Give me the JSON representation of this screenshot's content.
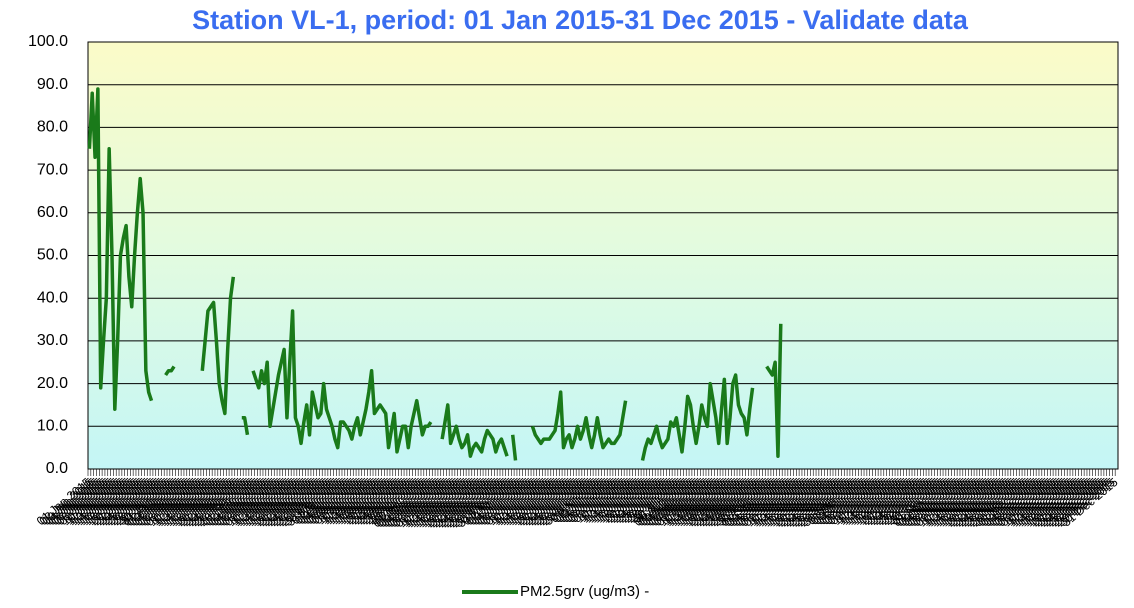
{
  "chart_data": {
    "type": "line",
    "title": "Station VL-1, period: 01 Jan 2015-31 Dec 2015 - Validate data",
    "categories": [
      "01 Jan 2015",
      "02 Jan 2015",
      "03 Jan 2015",
      "04 Jan 2015",
      "05 Jan 2015",
      "06 Jan 2015",
      "07 Jan 2015",
      "08 Jan 2015",
      "09 Jan 2015",
      "10 Jan 2015",
      "11 Jan 2015",
      "12 Jan 2015",
      "13 Jan 2015",
      "14 Jan 2015",
      "15 Jan 2015",
      "16 Jan 2015",
      "17 Jan 2015",
      "18 Jan 2015",
      "19 Jan 2015",
      "20 Jan 2015",
      "21 Jan 2015",
      "22 Jan 2015",
      "23 Jan 2015",
      "24 Jan 2015",
      "25 Jan 2015",
      "26 Jan 2015",
      "27 Jan 2015",
      "28 Jan 2015",
      "29 Jan 2015",
      "30 Jan 2015",
      "31 Jan 2015",
      "01 Feb 2015",
      "02 Feb 2015",
      "03 Feb 2015",
      "04 Feb 2015",
      "05 Feb 2015",
      "06 Feb 2015",
      "07 Feb 2015",
      "08 Feb 2015",
      "09 Feb 2015",
      "10 Feb 2015",
      "11 Feb 2015",
      "12 Feb 2015",
      "13 Feb 2015",
      "14 Feb 2015",
      "15 Feb 2015",
      "16 Feb 2015",
      "17 Feb 2015",
      "18 Feb 2015",
      "19 Feb 2015",
      "20 Feb 2015",
      "21 Feb 2015",
      "22 Feb 2015",
      "23 Feb 2015",
      "24 Feb 2015",
      "25 Feb 2015",
      "26 Feb 2015",
      "27 Feb 2015",
      "28 Feb 2015",
      "01 Mar 2015",
      "02 Mar 2015",
      "03 Mar 2015",
      "04 Mar 2015",
      "05 Mar 2015",
      "06 Mar 2015",
      "07 Mar 2015",
      "08 Mar 2015",
      "09 Mar 2015",
      "10 Mar 2015",
      "11 Mar 2015",
      "12 Mar 2015",
      "13 Mar 2015",
      "14 Mar 2015",
      "15 Mar 2015",
      "16 Mar 2015",
      "17 Mar 2015",
      "18 Mar 2015",
      "19 Mar 2015",
      "20 Mar 2015",
      "21 Mar 2015",
      "22 Mar 2015",
      "23 Mar 2015",
      "24 Mar 2015",
      "25 Mar 2015",
      "26 Mar 2015",
      "27 Mar 2015",
      "28 Mar 2015",
      "29 Mar 2015",
      "30 Mar 2015",
      "31 Mar 2015",
      "01 Apr 2015",
      "02 Apr 2015",
      "03 Apr 2015",
      "04 Apr 2015",
      "05 Apr 2015",
      "06 Apr 2015",
      "07 Apr 2015",
      "08 Apr 2015",
      "09 Apr 2015",
      "10 Apr 2015",
      "11 Apr 2015",
      "12 Apr 2015",
      "13 Apr 2015",
      "14 Apr 2015",
      "15 Apr 2015",
      "16 Apr 2015",
      "17 Apr 2015",
      "18 Apr 2015",
      "19 Apr 2015",
      "20 Apr 2015",
      "21 Apr 2015",
      "22 Apr 2015",
      "23 Apr 2015",
      "24 Apr 2015",
      "25 Apr 2015",
      "26 Apr 2015",
      "27 Apr 2015",
      "28 Apr 2015",
      "29 Apr 2015",
      "30 Apr 2015",
      "01 May 2015",
      "02 May 2015",
      "03 May 2015",
      "04 May 2015",
      "05 May 2015",
      "06 May 2015",
      "07 May 2015",
      "08 May 2015",
      "09 May 2015",
      "10 May 2015",
      "11 May 2015",
      "12 May 2015",
      "13 May 2015",
      "14 May 2015",
      "15 May 2015",
      "16 May 2015",
      "17 May 2015",
      "18 May 2015",
      "19 May 2015",
      "20 May 2015",
      "21 May 2015",
      "22 May 2015",
      "23 May 2015",
      "24 May 2015",
      "25 May 2015",
      "26 May 2015",
      "27 May 2015",
      "28 May 2015",
      "29 May 2015",
      "30 May 2015",
      "31 May 2015",
      "01 Jun 2015",
      "02 Jun 2015",
      "03 Jun 2015",
      "04 Jun 2015",
      "05 Jun 2015",
      "06 Jun 2015",
      "07 Jun 2015",
      "08 Jun 2015",
      "09 Jun 2015",
      "10 Jun 2015",
      "11 Jun 2015",
      "12 Jun 2015",
      "13 Jun 2015",
      "14 Jun 2015",
      "15 Jun 2015",
      "16 Jun 2015",
      "17 Jun 2015",
      "18 Jun 2015",
      "19 Jun 2015",
      "20 Jun 2015",
      "21 Jun 2015",
      "22 Jun 2015",
      "23 Jun 2015",
      "24 Jun 2015",
      "25 Jun 2015",
      "26 Jun 2015",
      "27 Jun 2015",
      "28 Jun 2015",
      "29 Jun 2015",
      "30 Jun 2015",
      "01 Jul 2015",
      "02 Jul 2015",
      "03 Jul 2015",
      "04 Jul 2015",
      "05 Jul 2015",
      "06 Jul 2015",
      "07 Jul 2015",
      "08 Jul 2015",
      "09 Jul 2015",
      "10 Jul 2015",
      "11 Jul 2015",
      "12 Jul 2015",
      "13 Jul 2015",
      "14 Jul 2015",
      "15 Jul 2015",
      "16 Jul 2015",
      "17 Jul 2015",
      "18 Jul 2015",
      "19 Jul 2015",
      "20 Jul 2015",
      "21 Jul 2015",
      "22 Jul 2015",
      "23 Jul 2015",
      "24 Jul 2015",
      "25 Jul 2015",
      "26 Jul 2015",
      "27 Jul 2015",
      "28 Jul 2015",
      "29 Jul 2015",
      "30 Jul 2015",
      "31 Jul 2015",
      "01 Aug 2015",
      "02 Aug 2015",
      "03 Aug 2015",
      "04 Aug 2015",
      "05 Aug 2015",
      "06 Aug 2015",
      "07 Aug 2015",
      "08 Aug 2015",
      "09 Aug 2015",
      "10 Aug 2015",
      "11 Aug 2015",
      "12 Aug 2015",
      "13 Aug 2015",
      "14 Aug 2015",
      "15 Aug 2015",
      "16 Aug 2015",
      "17 Aug 2015",
      "18 Aug 2015",
      "19 Aug 2015",
      "20 Aug 2015",
      "21 Aug 2015",
      "22 Aug 2015",
      "23 Aug 2015",
      "24 Aug 2015",
      "25 Aug 2015",
      "26 Aug 2015",
      "27 Aug 2015",
      "28 Aug 2015",
      "29 Aug 2015",
      "30 Aug 2015",
      "31 Aug 2015",
      "01 Sep 2015",
      "02 Sep 2015",
      "03 Sep 2015",
      "04 Sep 2015",
      "05 Sep 2015",
      "06 Sep 2015",
      "07 Sep 2015",
      "08 Sep 2015",
      "09 Sep 2015",
      "10 Sep 2015",
      "11 Sep 2015",
      "12 Sep 2015",
      "13 Sep 2015",
      "14 Sep 2015",
      "15 Sep 2015",
      "16 Sep 2015",
      "17 Sep 2015",
      "18 Sep 2015",
      "19 Sep 2015",
      "20 Sep 2015",
      "21 Sep 2015",
      "22 Sep 2015",
      "23 Sep 2015",
      "24 Sep 2015",
      "25 Sep 2015",
      "26 Sep 2015",
      "27 Sep 2015",
      "28 Sep 2015",
      "29 Sep 2015",
      "30 Sep 2015",
      "01 Oct 2015",
      "02 Oct 2015",
      "03 Oct 2015",
      "04 Oct 2015",
      "05 Oct 2015",
      "06 Oct 2015",
      "07 Oct 2015",
      "08 Oct 2015",
      "09 Oct 2015",
      "10 Oct 2015",
      "11 Oct 2015",
      "12 Oct 2015",
      "13 Oct 2015",
      "14 Oct 2015",
      "15 Oct 2015",
      "16 Oct 2015",
      "17 Oct 2015",
      "18 Oct 2015",
      "19 Oct 2015",
      "20 Oct 2015",
      "21 Oct 2015",
      "22 Oct 2015",
      "23 Oct 2015",
      "24 Oct 2015",
      "25 Oct 2015",
      "26 Oct 2015",
      "27 Oct 2015",
      "28 Oct 2015",
      "29 Oct 2015",
      "30 Oct 2015",
      "31 Oct 2015",
      "01 Nov 2015",
      "02 Nov 2015",
      "03 Nov 2015",
      "04 Nov 2015",
      "05 Nov 2015",
      "06 Nov 2015",
      "07 Nov 2015",
      "08 Nov 2015",
      "09 Nov 2015",
      "10 Nov 2015",
      "11 Nov 2015",
      "12 Nov 2015",
      "13 Nov 2015",
      "14 Nov 2015",
      "15 Nov 2015",
      "16 Nov 2015",
      "17 Nov 2015",
      "18 Nov 2015",
      "19 Nov 2015",
      "20 Nov 2015",
      "21 Nov 2015",
      "22 Nov 2015",
      "23 Nov 2015",
      "24 Nov 2015",
      "25 Nov 2015",
      "26 Nov 2015",
      "27 Nov 2015",
      "28 Nov 2015",
      "29 Nov 2015",
      "30 Nov 2015",
      "01 Dec 2015",
      "02 Dec 2015",
      "03 Dec 2015",
      "04 Dec 2015",
      "05 Dec 2015",
      "06 Dec 2015",
      "07 Dec 2015",
      "08 Dec 2015",
      "09 Dec 2015",
      "10 Dec 2015",
      "11 Dec 2015",
      "12 Dec 2015",
      "13 Dec 2015",
      "14 Dec 2015",
      "15 Dec 2015",
      "16 Dec 2015",
      "17 Dec 2015",
      "18 Dec 2015",
      "19 Dec 2015",
      "20 Dec 2015",
      "21 Dec 2015",
      "22 Dec 2015",
      "23 Dec 2015",
      "24 Dec 2015",
      "25 Dec 2015",
      "26 Dec 2015",
      "27 Dec 2015",
      "28 Dec 2015",
      "29 Dec 2015",
      "30 Dec 2015",
      "31 Dec 2015"
    ],
    "series": [
      {
        "name": "PM2.5grv (ug/m3)  -",
        "color": "#1a7a1a",
        "values": [
          75,
          88,
          73,
          89,
          19,
          30,
          40,
          75,
          50,
          14,
          30,
          50,
          54,
          57,
          45,
          38,
          50,
          60,
          68,
          60,
          23,
          18,
          16,
          null,
          null,
          null,
          null,
          22,
          23,
          23,
          24,
          null,
          null,
          null,
          null,
          null,
          null,
          null,
          null,
          null,
          23,
          30,
          37,
          38,
          39,
          30,
          20,
          16,
          13,
          28,
          40,
          45,
          null,
          null,
          12,
          12,
          8,
          null,
          23,
          21,
          19,
          23,
          20,
          25,
          10,
          14,
          18,
          22,
          25,
          28,
          12,
          25,
          37,
          12,
          10,
          6,
          11,
          15,
          8,
          18,
          15,
          12,
          13,
          20,
          14,
          12,
          10,
          7,
          5,
          11,
          11,
          10,
          9,
          7,
          10,
          12,
          8,
          11,
          14,
          18,
          23,
          13,
          14,
          15,
          14,
          13,
          5,
          9,
          13,
          4,
          7,
          10,
          10,
          5,
          10,
          13,
          16,
          12,
          8,
          10,
          10,
          11,
          null,
          null,
          null,
          7,
          11,
          15,
          6,
          8,
          10,
          7,
          5,
          6,
          8,
          3,
          5,
          6,
          5,
          4,
          7,
          9,
          8,
          7,
          4,
          6,
          7,
          5,
          3,
          null,
          8,
          2,
          null,
          null,
          null,
          null,
          null,
          10,
          8,
          7,
          6,
          7,
          7,
          7,
          8,
          9,
          13,
          18,
          5,
          7,
          8,
          5,
          7,
          10,
          7,
          9,
          12,
          8,
          5,
          8,
          12,
          8,
          5,
          6,
          7,
          6,
          6,
          7,
          8,
          12,
          16,
          null,
          null,
          null,
          null,
          null,
          2,
          5,
          7,
          6,
          8,
          10,
          7,
          5,
          6,
          7,
          11,
          10,
          12,
          8,
          4,
          10,
          17,
          15,
          10,
          6,
          10,
          15,
          12,
          10,
          20,
          16,
          12,
          6,
          14,
          21,
          6,
          12,
          20,
          22,
          15,
          13,
          12,
          8,
          14,
          19,
          null,
          null,
          null,
          null,
          24,
          23,
          22,
          25,
          3,
          34,
          null,
          null,
          null,
          null,
          null,
          null,
          null,
          null,
          null,
          null,
          null,
          null,
          null,
          null,
          null,
          null,
          null,
          null,
          null,
          null,
          null,
          null,
          null,
          null,
          null,
          null,
          null,
          null,
          null,
          null,
          null,
          null,
          null,
          null,
          null,
          null,
          null,
          null,
          null,
          null,
          null,
          null,
          null,
          null,
          null,
          null,
          null,
          null,
          null,
          null,
          null,
          null,
          null,
          null,
          null,
          null,
          null,
          null,
          null,
          null,
          null,
          null,
          null,
          null,
          null,
          null,
          null,
          null,
          null,
          null,
          null,
          null,
          null,
          null,
          null,
          null,
          null,
          null,
          null,
          null,
          null,
          null,
          null,
          null,
          null,
          null,
          null,
          null,
          null,
          null,
          null,
          null,
          null,
          null,
          null,
          null,
          null,
          null,
          null,
          null,
          null,
          null,
          null,
          null,
          null,
          null,
          null,
          null,
          null,
          null,
          null,
          null,
          null,
          null,
          null,
          null,
          null,
          null,
          null
        ]
      }
    ],
    "ylim": [
      0,
      100
    ],
    "yticks": [
      {
        "value": 0,
        "label": "0.0"
      },
      {
        "value": 10,
        "label": "10.0"
      },
      {
        "value": 20,
        "label": "20.0"
      },
      {
        "value": 30,
        "label": "30.0"
      },
      {
        "value": 40,
        "label": "40.0"
      },
      {
        "value": 50,
        "label": "50.0"
      },
      {
        "value": 60,
        "label": "60.0"
      },
      {
        "value": 70,
        "label": "70.0"
      },
      {
        "value": 80,
        "label": "80.0"
      },
      {
        "value": 90,
        "label": "90.0"
      },
      {
        "value": 100,
        "label": "100.0"
      }
    ],
    "grid": true,
    "legend": "bottom"
  }
}
